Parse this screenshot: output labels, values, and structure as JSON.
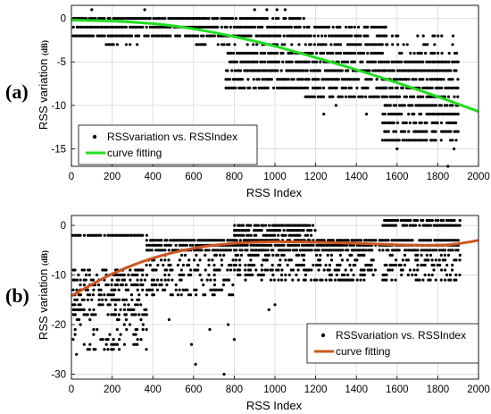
{
  "chart_data": [
    {
      "type": "scatter",
      "panel_label": "(a)",
      "xlabel": "RSS Index",
      "ylabel": "RSS variation",
      "ylabel_unit": "(dB)",
      "xlim": [
        0,
        2000
      ],
      "ylim": [
        -17,
        1.5
      ],
      "xticks": [
        "0",
        "200",
        "400",
        "600",
        "800",
        "1000",
        "1200",
        "1400",
        "1600",
        "1800",
        "2000"
      ],
      "yticks": [
        "0",
        "-5",
        "-10",
        "-15"
      ],
      "xtick_values": [
        0,
        200,
        400,
        600,
        800,
        1000,
        1200,
        1400,
        1600,
        1800,
        2000
      ],
      "ytick_values": [
        0,
        -5,
        -10,
        -15
      ],
      "grid": true,
      "legend_position": "bottom-left",
      "series": [
        {
          "name": "RSSvariation vs. RSSIndex",
          "kind": "points",
          "color": "#000000",
          "band_segments": [
            {
              "x": [
                0,
                1150
              ],
              "levels": [
                0,
                -1,
                -2
              ],
              "density": 0.85
            },
            {
              "x": [
                0,
                360
              ],
              "levels": [
                -3
              ],
              "density": 0.15
            },
            {
              "x": [
                560,
                1150
              ],
              "levels": [
                -3
              ],
              "density": 0.35
            },
            {
              "x": [
                760,
                1150
              ],
              "levels": [
                -4,
                -5,
                -6,
                -7,
                -8
              ],
              "density": 0.8
            },
            {
              "x": [
                1150,
                1550
              ],
              "levels": [
                -1,
                -2,
                -3,
                -4,
                -5,
                -6,
                -7,
                -8,
                -9
              ],
              "density": 0.75
            },
            {
              "x": [
                1530,
                1900
              ],
              "levels": [
                -5,
                -6,
                -7,
                -8,
                -9,
                -10,
                -11,
                -12,
                -13,
                -14
              ],
              "density": 0.8
            },
            {
              "x": [
                1550,
                1900
              ],
              "levels": [
                -2,
                -3,
                -4
              ],
              "density": 0.3
            }
          ],
          "outliers": [
            {
              "x": 100,
              "y": 1
            },
            {
              "x": 360,
              "y": 1
            },
            {
              "x": 900,
              "y": 1
            },
            {
              "x": 960,
              "y": 1
            },
            {
              "x": 1010,
              "y": 1
            },
            {
              "x": 1050,
              "y": 1
            },
            {
              "x": 1600,
              "y": -15
            },
            {
              "x": 1850,
              "y": -17
            },
            {
              "x": 1880,
              "y": -15
            },
            {
              "x": 1240,
              "y": -11
            },
            {
              "x": 1450,
              "y": -11
            },
            {
              "x": 1300,
              "y": -10
            }
          ]
        },
        {
          "name": "curve fitting",
          "kind": "line",
          "color": "#22dd22",
          "x": [
            0,
            200,
            400,
            600,
            800,
            1000,
            1200,
            1400,
            1600,
            1800,
            2000
          ],
          "y": [
            -0.2,
            -0.3,
            -0.6,
            -1.2,
            -2.1,
            -3.2,
            -4.5,
            -5.9,
            -7.4,
            -9.0,
            -10.7
          ]
        }
      ]
    },
    {
      "type": "scatter",
      "panel_label": "(b)",
      "xlabel": "RSS Index",
      "ylabel": "RSS variation",
      "ylabel_unit": "(dB)",
      "xlim": [
        0,
        2000
      ],
      "ylim": [
        -31,
        2
      ],
      "xticks": [
        "0",
        "200",
        "400",
        "600",
        "800",
        "1000",
        "1200",
        "1400",
        "1600",
        "1800",
        "2000"
      ],
      "yticks": [
        "0",
        "-10",
        "-20",
        "-30"
      ],
      "xtick_values": [
        0,
        200,
        400,
        600,
        800,
        1000,
        1200,
        1400,
        1600,
        1800,
        2000
      ],
      "ytick_values": [
        0,
        -10,
        -20,
        -30
      ],
      "grid": true,
      "legend_position": "bottom-right",
      "series": [
        {
          "name": "RSSvariation vs. RSSIndex",
          "kind": "points",
          "color": "#000000",
          "band_segments": [
            {
              "x": [
                0,
                370
              ],
              "levels": [
                -2
              ],
              "density": 0.9
            },
            {
              "x": [
                0,
                370
              ],
              "levels": [
                -9,
                -10,
                -11,
                -12,
                -13,
                -14,
                -15,
                -16,
                -17,
                -18
              ],
              "density": 0.45
            },
            {
              "x": [
                0,
                370
              ],
              "levels": [
                -19,
                -20,
                -21,
                -22,
                -23,
                -24,
                -25
              ],
              "density": 0.18
            },
            {
              "x": [
                370,
                1900
              ],
              "levels": [
                -3,
                -4,
                -5
              ],
              "density": 0.85
            },
            {
              "x": [
                370,
                800
              ],
              "levels": [
                -6,
                -7,
                -8,
                -9,
                -10,
                -11,
                -12,
                -13,
                -14
              ],
              "density": 0.3
            },
            {
              "x": [
                800,
                1200
              ],
              "levels": [
                0,
                -1,
                -2
              ],
              "density": 0.7
            },
            {
              "x": [
                800,
                1500
              ],
              "levels": [
                -6,
                -7,
                -8,
                -9,
                -10,
                -11
              ],
              "density": 0.35
            },
            {
              "x": [
                1530,
                1910
              ],
              "levels": [
                1,
                0
              ],
              "density": 0.8
            },
            {
              "x": [
                1530,
                1910
              ],
              "levels": [
                -6,
                -7,
                -8,
                -9,
                -10,
                -11
              ],
              "density": 0.3
            }
          ],
          "outliers": [
            {
              "x": 610,
              "y": -28
            },
            {
              "x": 750,
              "y": -30
            },
            {
              "x": 590,
              "y": -24
            },
            {
              "x": 800,
              "y": -23
            },
            {
              "x": 680,
              "y": -21
            },
            {
              "x": 970,
              "y": -17
            },
            {
              "x": 1000,
              "y": -16
            },
            {
              "x": 770,
              "y": -20
            },
            {
              "x": 25,
              "y": -26
            },
            {
              "x": 110,
              "y": -25
            },
            {
              "x": 480,
              "y": -19
            }
          ]
        },
        {
          "name": "curve fitting",
          "kind": "line",
          "color": "#cc5522",
          "x": [
            0,
            200,
            400,
            600,
            800,
            1000,
            1200,
            1400,
            1600,
            1800,
            1900,
            2000
          ],
          "y": [
            -14.2,
            -9.8,
            -6.6,
            -4.6,
            -3.6,
            -3.3,
            -3.4,
            -3.6,
            -3.9,
            -4.0,
            -3.7,
            -3.0
          ]
        }
      ]
    }
  ]
}
